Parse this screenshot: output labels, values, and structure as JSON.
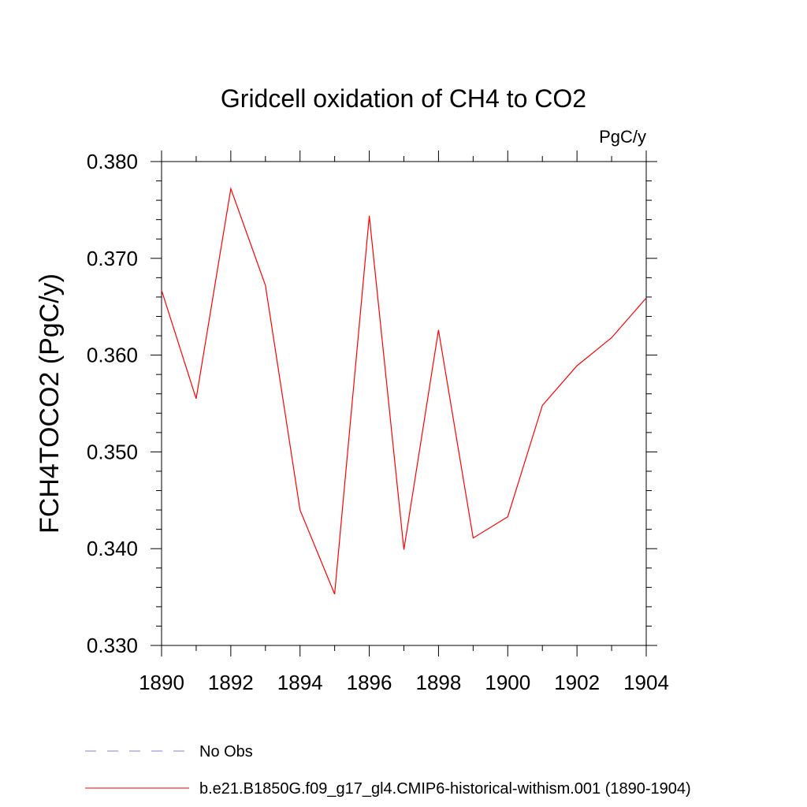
{
  "chart_data": {
    "type": "line",
    "title": "Gridcell oxidation of CH4 to CO2",
    "units_label": "PgC/y",
    "ylabel": "FCH4TOCO2  (PgC/y)",
    "xlabel": "",
    "xlim": [
      1890,
      1904
    ],
    "ylim": [
      0.33,
      0.38
    ],
    "x_ticks": [
      "1890",
      "1892",
      "1894",
      "1896",
      "1898",
      "1900",
      "1902",
      "1904"
    ],
    "y_ticks": [
      "0.330",
      "0.340",
      "0.350",
      "0.360",
      "0.370",
      "0.380"
    ],
    "grid": false,
    "legend_position": "bottom-left",
    "x": [
      1890,
      1891,
      1892,
      1893,
      1894,
      1895,
      1896,
      1897,
      1898,
      1899,
      1900,
      1901,
      1902,
      1903,
      1904
    ],
    "series": [
      {
        "name": "b.e21.B1850G.f09_g17_gl4.CMIP6-historical-withism.001 (1890-1904)",
        "color": "#ff0000",
        "style": "solid",
        "values": [
          0.3667,
          0.3555,
          0.3772,
          0.3672,
          0.344,
          0.3353,
          0.3744,
          0.3399,
          0.3626,
          0.3411,
          0.3433,
          0.3548,
          0.3589,
          0.3618,
          0.3659
        ]
      }
    ],
    "legend": [
      {
        "label": "No Obs",
        "color": "#8a7fd1",
        "style": "dashed"
      },
      {
        "label": "b.e21.B1850G.f09_g17_gl4.CMIP6-historical-withism.001 (1890-1904)",
        "color": "#ff0000",
        "style": "solid"
      }
    ]
  }
}
